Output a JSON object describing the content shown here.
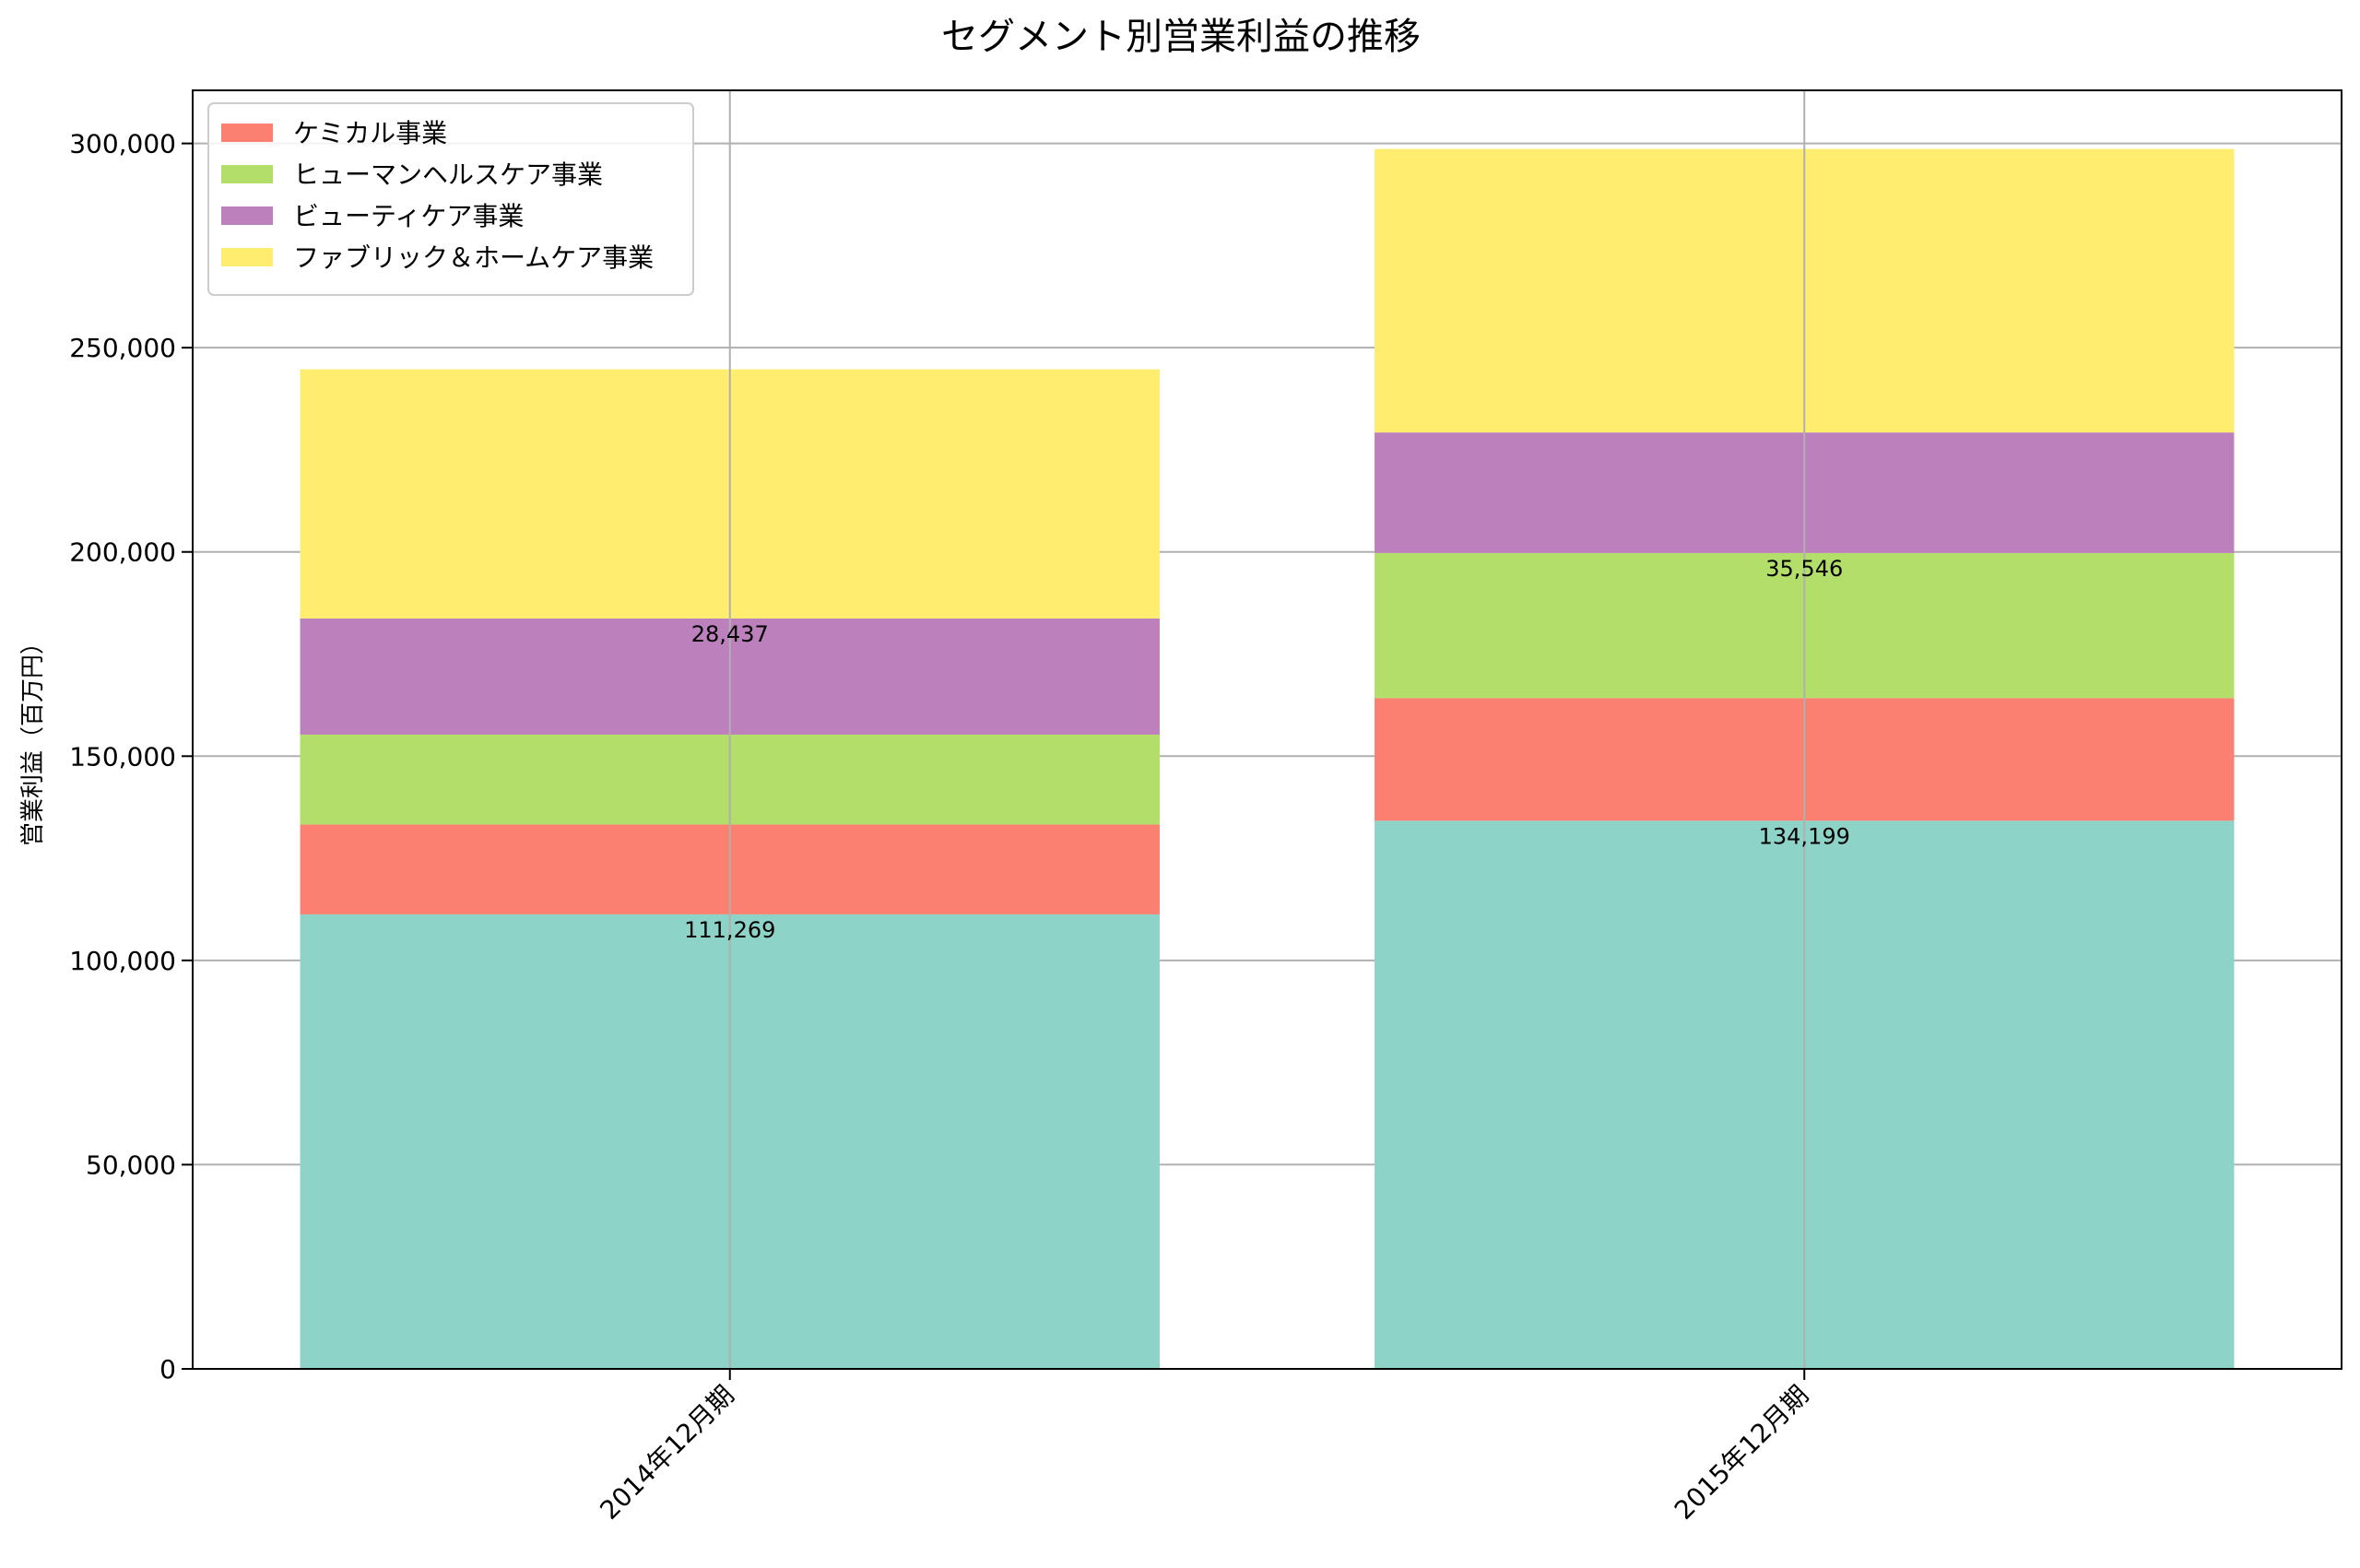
{
  "chart_data": {
    "type": "bar",
    "stacked": true,
    "title": "セグメント別営業利益の推移",
    "xlabel": "",
    "ylabel": "営業利益（百万円）",
    "ylim": [
      0,
      313000
    ],
    "yticks": [
      0,
      50000,
      100000,
      150000,
      200000,
      250000,
      300000
    ],
    "ytick_labels": [
      "0",
      "50,000",
      "100,000",
      "150,000",
      "200,000",
      "250,000",
      "300,000"
    ],
    "grid": true,
    "legend_position": "top-left",
    "categories": [
      "2014年12月期",
      "2015年12月期"
    ],
    "series": [
      {
        "name": "",
        "color": "#8dd3c7",
        "in_legend": false,
        "values": [
          111269,
          134199
        ]
      },
      {
        "name": "ケミカル事業",
        "color": "#fb8072",
        "in_legend": true,
        "values": [
          22000,
          30000
        ]
      },
      {
        "name": "ヒューマンヘルスケア事業",
        "color": "#b3de69",
        "in_legend": true,
        "values": [
          22000,
          35546
        ]
      },
      {
        "name": "ビューティケア事業",
        "color": "#bc80bd",
        "in_legend": true,
        "values": [
          28437,
          29500
        ]
      },
      {
        "name": "ファブリック＆ホームケア事業",
        "color": "#ffed6f",
        "in_legend": true,
        "values": [
          61000,
          69400
        ]
      }
    ],
    "data_labels": [
      {
        "category": 0,
        "y": 111269,
        "text": "111,269"
      },
      {
        "category": 0,
        "y": 183706,
        "text": "28,437"
      },
      {
        "category": 1,
        "y": 134199,
        "text": "134,199"
      },
      {
        "category": 1,
        "y": 199745,
        "text": "35,546"
      }
    ]
  }
}
